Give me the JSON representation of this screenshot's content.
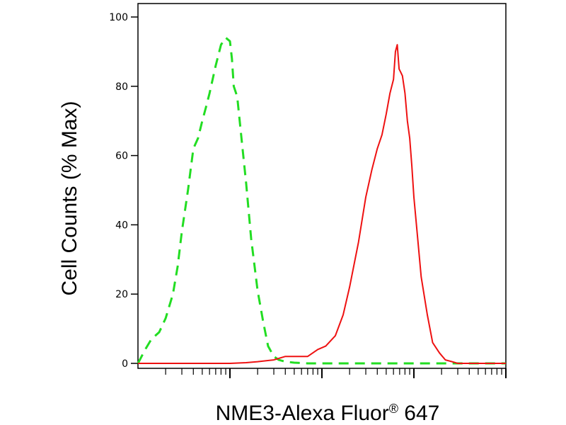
{
  "chart_data": {
    "type": "line",
    "title": "",
    "ylabel": "Cell Counts (% Max)",
    "xlabel_main": "NME3-Alexa Fluor",
    "xlabel_superscript": "®",
    "xlabel_suffix": " 647",
    "xscale": "log",
    "xlim": [
      0.1,
      1000
    ],
    "ylim": [
      0,
      105
    ],
    "y_ticks": [
      0,
      20,
      40,
      60,
      80,
      100
    ],
    "y_tick_labels": [
      "0",
      "20",
      "40",
      "60",
      "80",
      "100"
    ],
    "x_tick_labels": [],
    "grid": false,
    "legend": "none",
    "series": [
      {
        "style": "dashed",
        "color": "#22dd22",
        "x": [
          0.1,
          0.12,
          0.14,
          0.17,
          0.2,
          0.24,
          0.27,
          0.3,
          0.35,
          0.4,
          0.45,
          0.5,
          0.55,
          0.6,
          0.7,
          0.8,
          0.9,
          1.0,
          1.05,
          1.1,
          1.2,
          1.3,
          1.5,
          1.7,
          2.0,
          2.3,
          2.6,
          3.0,
          3.4,
          4.0,
          5.0,
          7,
          10,
          20,
          50,
          100,
          300,
          1000
        ],
        "y": [
          0,
          4,
          7,
          9,
          13,
          20,
          28,
          38,
          50,
          62,
          65,
          70,
          74,
          78,
          86,
          92,
          94,
          93,
          88,
          80,
          77,
          68,
          52,
          36,
          21,
          12,
          5,
          2,
          1,
          0.5,
          0.2,
          0,
          0,
          0,
          0,
          0,
          0,
          0
        ]
      },
      {
        "style": "solid",
        "color": "#ee1111",
        "x": [
          0.1,
          0.5,
          1.0,
          1.5,
          2.0,
          3.0,
          4.0,
          5.0,
          7.0,
          9.0,
          11,
          14,
          17,
          20,
          25,
          30,
          35,
          40,
          45,
          50,
          55,
          60,
          63,
          66,
          69,
          72,
          75,
          80,
          85,
          90,
          95,
          100,
          110,
          120,
          140,
          160,
          190,
          220,
          260,
          300,
          400,
          1000
        ],
        "y": [
          0,
          0,
          0,
          0.2,
          0.5,
          1,
          2,
          2,
          2,
          4,
          5,
          8,
          14,
          22,
          35,
          48,
          56,
          62,
          66,
          72,
          78,
          82,
          90,
          92,
          85,
          84,
          83,
          78,
          70,
          65,
          57,
          48,
          36,
          25,
          14,
          6,
          3,
          1,
          0.5,
          0,
          0,
          0
        ]
      }
    ]
  }
}
